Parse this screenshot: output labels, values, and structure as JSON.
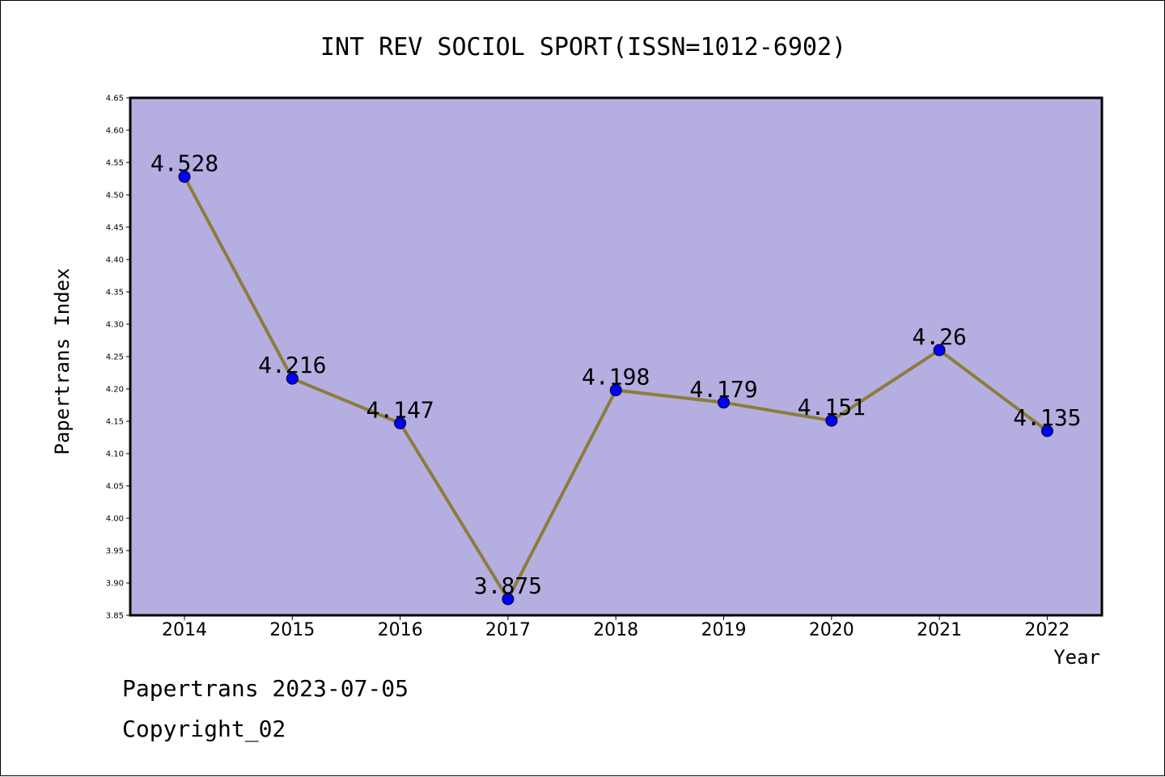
{
  "chart_data": {
    "type": "line",
    "title": "INT REV SOCIOL SPORT(ISSN=1012-6902)",
    "xlabel": "Year",
    "ylabel": "Papertrans Index",
    "categories": [
      "2014",
      "2015",
      "2016",
      "2017",
      "2018",
      "2019",
      "2020",
      "2021",
      "2022"
    ],
    "series": [
      {
        "values": [
          4.528,
          4.216,
          4.147,
          3.875,
          4.198,
          4.179,
          4.151,
          4.26,
          4.135
        ],
        "labels": [
          "4.528",
          "4.216",
          "4.147",
          "3.875",
          "4.198",
          "4.179",
          "4.151",
          "4.26",
          "4.135"
        ]
      }
    ],
    "ylim": [
      3.85,
      4.65
    ],
    "yticks": [
      "3.85",
      "3.90",
      "3.95",
      "4.00",
      "4.05",
      "4.10",
      "4.15",
      "4.20",
      "4.25",
      "4.30",
      "4.35",
      "4.40",
      "4.45",
      "4.50",
      "4.55",
      "4.60",
      "4.65"
    ],
    "grid": false,
    "colors": {
      "plot_background": "#b5aee1",
      "line": "#8b7d3a",
      "marker": "#0000ff"
    }
  },
  "footer": {
    "line1": "Papertrans 2023-07-05",
    "line2": "Copyright_02"
  }
}
